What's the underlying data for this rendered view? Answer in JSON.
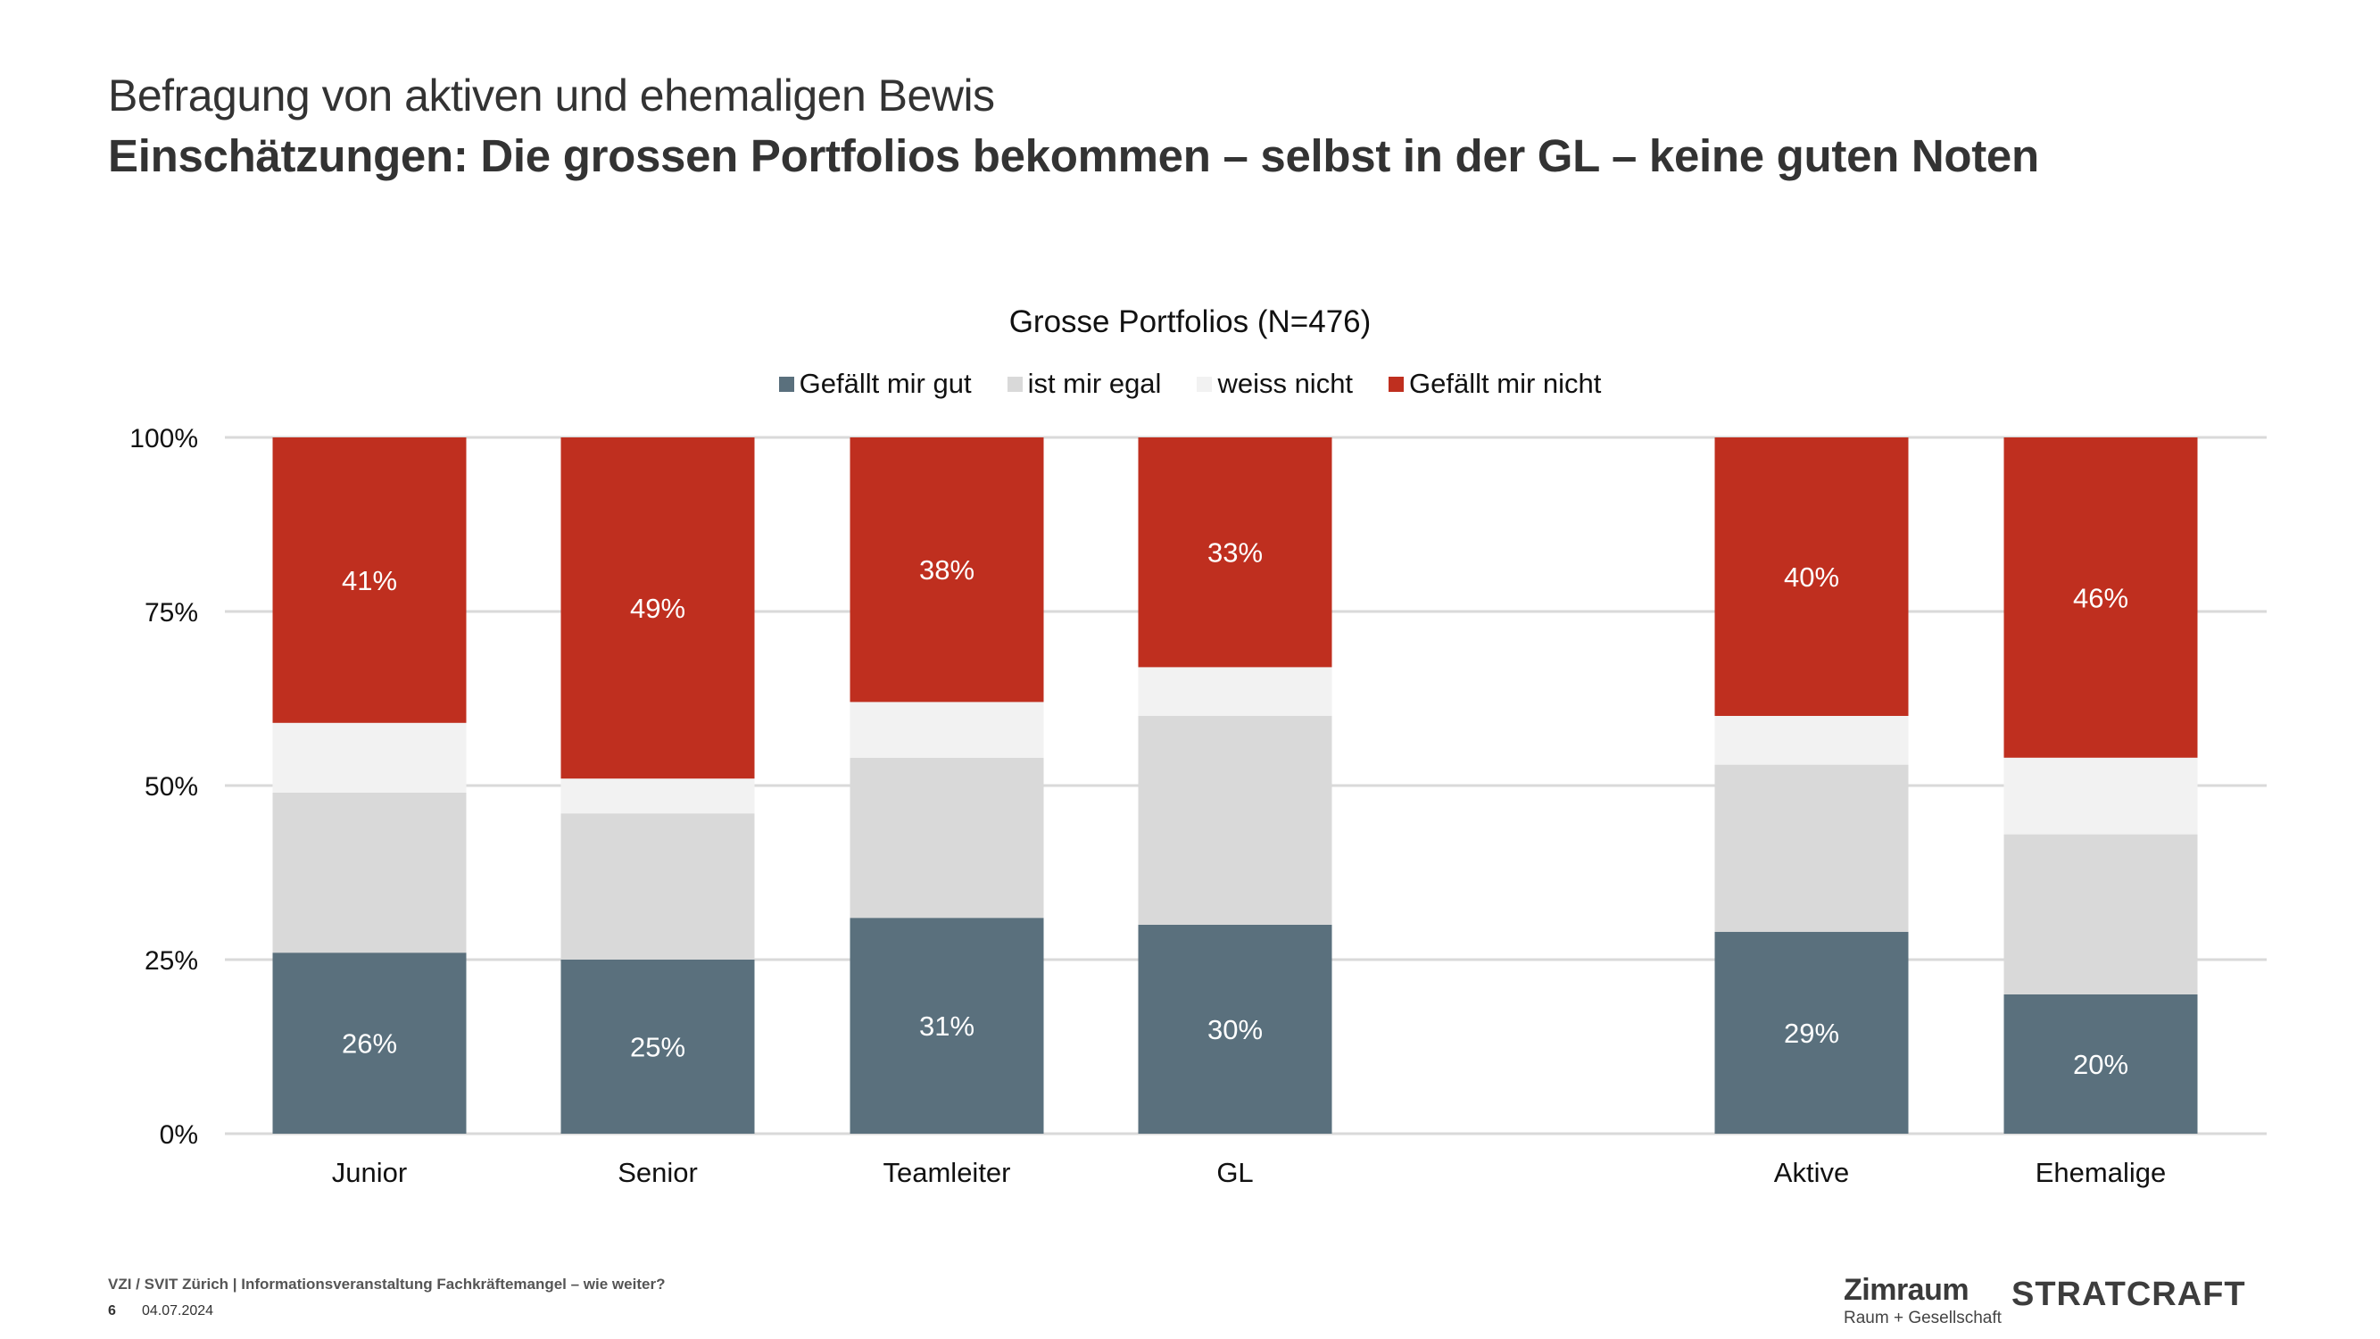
{
  "header": {
    "title": "Befragung von aktiven und ehemaligen Bewis",
    "subtitle": "Einschätzungen: Die grossen Portfolios bekommen – selbst in der GL – keine guten Noten"
  },
  "chart_data": {
    "type": "bar",
    "stacked": true,
    "normalized": true,
    "title": "Grosse Portfolios (N=476)",
    "xlabel": "",
    "ylabel": "",
    "ylim": [
      0,
      100
    ],
    "yticks": [
      "0%",
      "25%",
      "50%",
      "75%",
      "100%"
    ],
    "grid": true,
    "legend_position": "top-center",
    "categories": [
      "Junior",
      "Senior",
      "Teamleiter",
      "GL",
      "",
      "Aktive",
      "Ehemalige"
    ],
    "series": [
      {
        "name": "Gefällt mir gut",
        "color": "#5a707d",
        "values": [
          26,
          25,
          31,
          30,
          null,
          29,
          20
        ],
        "labels": [
          "26%",
          "25%",
          "31%",
          "30%",
          "",
          "29%",
          "20%"
        ]
      },
      {
        "name": "ist mir egal",
        "color": "#d9d9d9",
        "values": [
          23,
          21,
          23,
          30,
          null,
          24,
          23
        ],
        "labels": [
          "",
          "",
          "",
          "",
          "",
          "",
          ""
        ]
      },
      {
        "name": "weiss nicht",
        "color": "#f2f2f2",
        "values": [
          10,
          5,
          8,
          7,
          null,
          7,
          11
        ],
        "labels": [
          "",
          "",
          "",
          "",
          "",
          "",
          ""
        ]
      },
      {
        "name": "Gefällt mir nicht",
        "color": "#bf2f1f",
        "values": [
          41,
          49,
          38,
          33,
          null,
          40,
          46
        ],
        "labels": [
          "41%",
          "49%",
          "38%",
          "33%",
          "",
          "40%",
          "46%"
        ]
      }
    ]
  },
  "footer": {
    "event": "VZI / SVIT Zürich | Informationsveranstaltung Fachkräftemangel – wie weiter?",
    "page": "6",
    "date": "04.07.2024"
  },
  "logos": {
    "zimraum": "Zimraum",
    "zimraum_tagline": "Raum + Gesellschaft",
    "stratcraft": "STRATCRAFT"
  }
}
